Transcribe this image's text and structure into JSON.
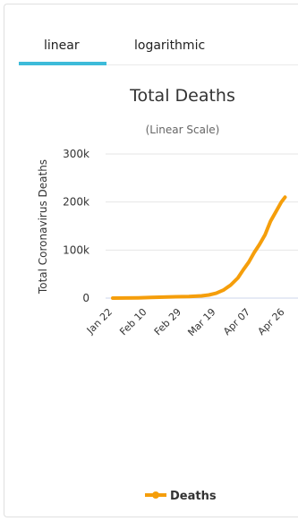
{
  "tabs": [
    {
      "label": "linear",
      "active": true
    },
    {
      "label": "logarithmic",
      "active": false
    }
  ],
  "colors": {
    "accent": "#3dbbd9",
    "series": "#f59e0b",
    "grid": "#e6e6e6",
    "xaxis": "#ccd6eb"
  },
  "chart_data": {
    "type": "line",
    "title": "Total Deaths",
    "subtitle": "(Linear Scale)",
    "ylabel": "Total Coronavirus Deaths",
    "xlabel": "",
    "ylim": [
      0,
      300000
    ],
    "yticks": [
      0,
      100000,
      200000,
      300000
    ],
    "ytick_labels": [
      "0",
      "100k",
      "200k",
      "300k"
    ],
    "xticks": [
      "Jan 22",
      "Feb 10",
      "Feb 29",
      "Mar 19",
      "Apr 07",
      "Apr 26"
    ],
    "grid": true,
    "legend": "bottom-center",
    "series": [
      {
        "name": "Deaths",
        "x": [
          "Jan 22",
          "Jan 29",
          "Feb 05",
          "Feb 12",
          "Feb 19",
          "Feb 26",
          "Mar 04",
          "Mar 11",
          "Mar 15",
          "Mar 19",
          "Mar 23",
          "Mar 27",
          "Mar 31",
          "Apr 03",
          "Apr 06",
          "Apr 09",
          "Apr 12",
          "Apr 15",
          "Apr 18",
          "Apr 21",
          "Apr 24",
          "Apr 26"
        ],
        "values": [
          17,
          170,
          565,
          1370,
          2130,
          2770,
          3200,
          4600,
          6500,
          10000,
          16500,
          27000,
          42000,
          59000,
          75000,
          95000,
          112000,
          132000,
          160000,
          180000,
          200000,
          210000
        ]
      }
    ]
  }
}
